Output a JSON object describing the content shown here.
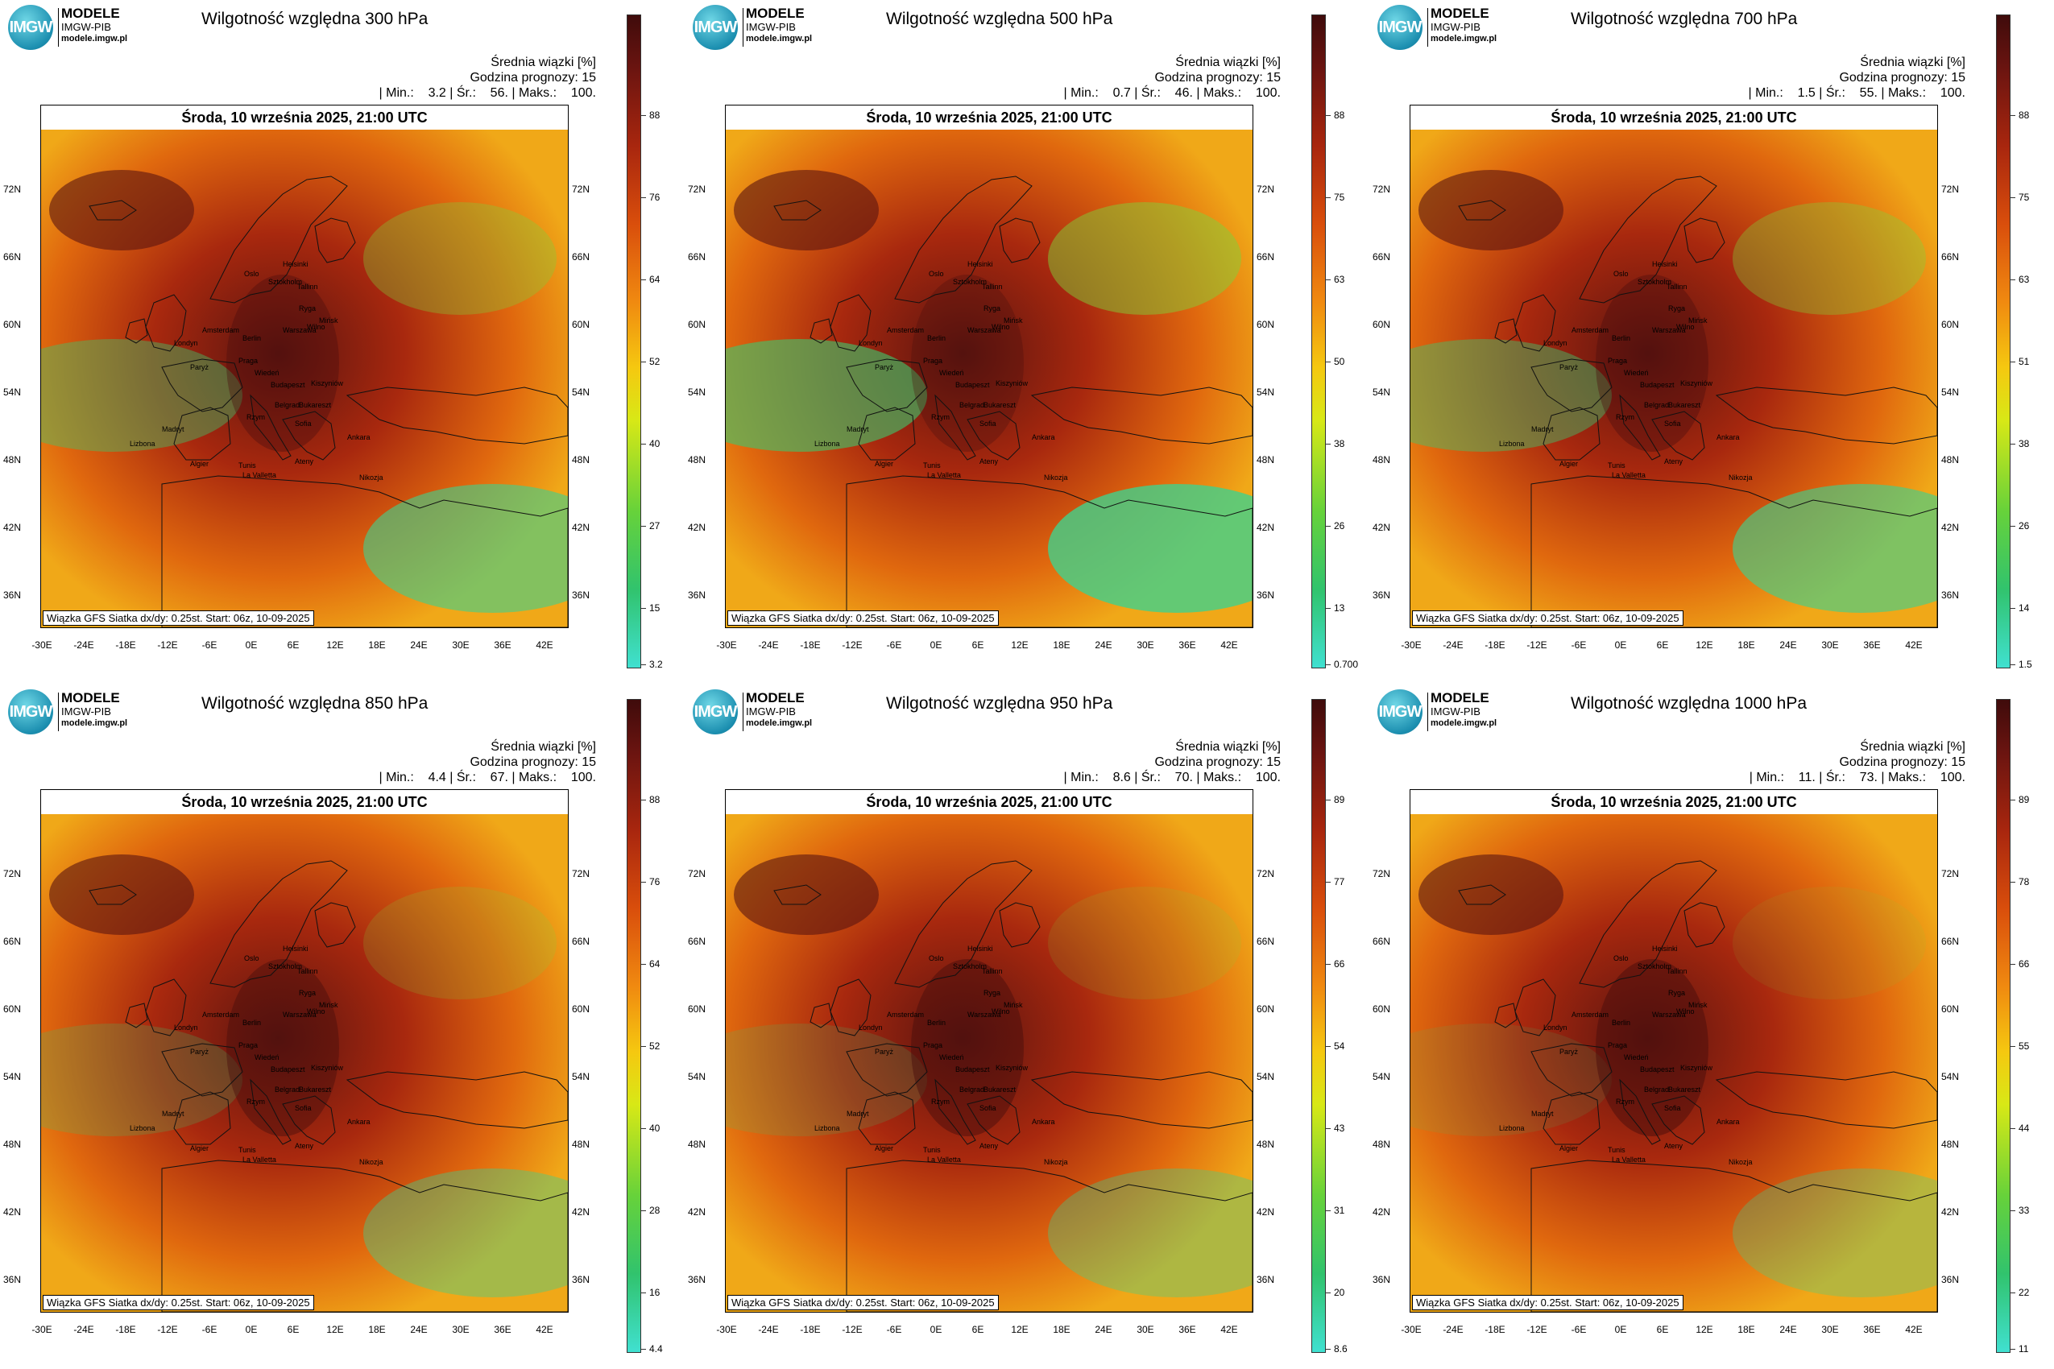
{
  "panels": [
    {
      "title": "Wilgotność względna 300 hPa",
      "stat_header": "Średnia wiązki [%]",
      "forecast_hour": "Godzina prognozy: 15",
      "stats": "| Min.:    3.2 | Śr.:    56. | Maks.:    100.",
      "date": "Środa, 10 września 2025, 21:00 UTC",
      "footnote": "Wiązka GFS  Siatka dx/dy: 0.25st.  Start: 06z, 10-09-2025",
      "colorbar_ticks": [
        "88",
        "76",
        "64",
        "52",
        "40",
        "27",
        "15",
        "3.2"
      ],
      "humidity_level": 0.56
    },
    {
      "title": "Wilgotność względna 500 hPa",
      "stat_header": "Średnia wiązki [%]",
      "forecast_hour": "Godzina prognozy: 15",
      "stats": "| Min.:    0.7 | Śr.:    46. | Maks.:    100.",
      "date": "Środa, 10 września 2025, 21:00 UTC",
      "footnote": "Wiązka GFS  Siatka dx/dy: 0.25st.  Start: 06z, 10-09-2025",
      "colorbar_ticks": [
        "88",
        "75",
        "63",
        "50",
        "38",
        "26",
        "13",
        "0.700"
      ],
      "humidity_level": 0.46
    },
    {
      "title": "Wilgotność względna 700 hPa",
      "stat_header": "Średnia wiązki [%]",
      "forecast_hour": "Godzina prognozy: 15",
      "stats": "| Min.:    1.5 | Śr.:    55. | Maks.:    100.",
      "date": "Środa, 10 września 2025, 21:00 UTC",
      "footnote": "Wiązka GFS  Siatka dx/dy: 0.25st.  Start: 06z, 10-09-2025",
      "colorbar_ticks": [
        "88",
        "75",
        "63",
        "51",
        "38",
        "26",
        "14",
        "1.5"
      ],
      "humidity_level": 0.55
    },
    {
      "title": "Wilgotność względna 850 hPa",
      "stat_header": "Średnia wiązki [%]",
      "forecast_hour": "Godzina prognozy: 15",
      "stats": "| Min.:    4.4 | Śr.:    67. | Maks.:    100.",
      "date": "Środa, 10 września 2025, 21:00 UTC",
      "footnote": "Wiązka GFS  Siatka dx/dy: 0.25st.  Start: 06z, 10-09-2025",
      "colorbar_ticks": [
        "88",
        "76",
        "64",
        "52",
        "40",
        "28",
        "16",
        "4.4"
      ],
      "humidity_level": 0.67
    },
    {
      "title": "Wilgotność względna 950 hPa",
      "stat_header": "Średnia wiązki [%]",
      "forecast_hour": "Godzina prognozy: 15",
      "stats": "| Min.:    8.6 | Śr.:    70. | Maks.:    100.",
      "date": "Środa, 10 września 2025, 21:00 UTC",
      "footnote": "Wiązka GFS  Siatka dx/dy: 0.25st.  Start: 06z, 10-09-2025",
      "colorbar_ticks": [
        "89",
        "77",
        "66",
        "54",
        "43",
        "31",
        "20",
        "8.6"
      ],
      "humidity_level": 0.7
    },
    {
      "title": "Wilgotność względna 1000 hPa",
      "stat_header": "Średnia wiązki [%]",
      "forecast_hour": "Godzina prognozy: 15",
      "stats": "| Min.:    11. | Śr.:    73. | Maks.:    100.",
      "date": "Środa, 10 września 2025, 21:00 UTC",
      "footnote": "Wiązka GFS  Siatka dx/dy: 0.25st.  Start: 06z, 10-09-2025",
      "colorbar_ticks": [
        "89",
        "78",
        "66",
        "55",
        "44",
        "33",
        "22",
        "11"
      ],
      "humidity_level": 0.73
    }
  ],
  "logo": {
    "badge": "IMGW",
    "line1": "MODELE",
    "line2": "IMGW-PIB",
    "line3": "modele.imgw.pl"
  },
  "lat_labels": [
    "72N",
    "66N",
    "60N",
    "54N",
    "48N",
    "42N",
    "36N"
  ],
  "lon_labels": [
    "-30E",
    "-24E",
    "-18E",
    "-12E",
    "-6E",
    "0E",
    "6E",
    "12E",
    "18E",
    "24E",
    "30E",
    "36E",
    "42E"
  ],
  "cities": [
    "Oslo",
    "Helsinki",
    "Sztokholm",
    "Tallinn",
    "Ryga",
    "Wilno",
    "Mińsk",
    "Warszawa",
    "Amsterdam",
    "Londyn",
    "Berlin",
    "Praga",
    "Paryż",
    "Wiedeń",
    "Budapeszt",
    "Kiszyniów",
    "Bukareszt",
    "Belgrad",
    "Sofia",
    "Rzym",
    "Madryt",
    "Lizbona",
    "Algier",
    "Tunis",
    "Ateny",
    "Ankara",
    "Nikozja",
    "La Valletta"
  ]
}
